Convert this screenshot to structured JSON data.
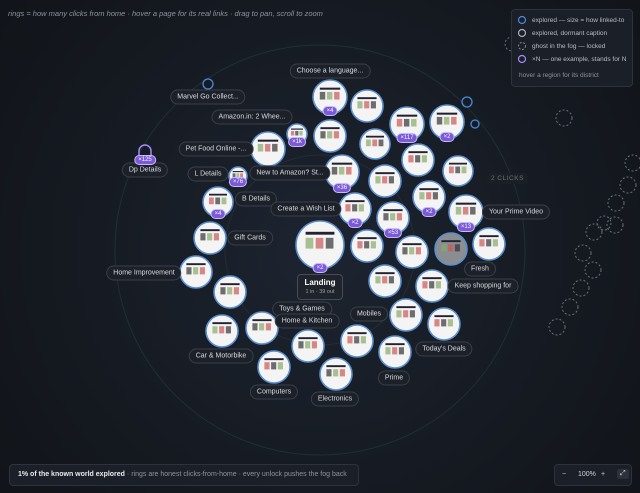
{
  "hint": "rings = how many clicks from home · hover a page for its real links · drag to pan, scroll to zoom",
  "legend": [
    "explored — size = how linked-to",
    "explored, dormant caption",
    "ghost in the fog — locked",
    "×N — one example, stands for N",
    "hover a region for its district"
  ],
  "ring_label": "2 CLICKS",
  "landing": {
    "title": "Landing",
    "stats": "1 in · 39 out",
    "badge": "×2"
  },
  "labels": [
    "Choose a language...",
    "Marvel Go Collect...",
    "Amazon.in: 2 Whee...",
    "Pet Food Online -...",
    "Dp Details",
    "L Details",
    "New to Amazon? St...",
    "B Details",
    "Create a Wish List",
    "Your Prime Video",
    "Gift Cards",
    "Home Improvement",
    "Fresh",
    "Keep shopping for",
    "Toys & Games",
    "Home & Kitchen",
    "Mobiles",
    "Car & Motorbike",
    "Today's Deals",
    "Prime",
    "Computers",
    "Electronics"
  ],
  "badges": [
    "×4",
    "×117",
    "×2",
    "×1k",
    "×125",
    "×76",
    "×36",
    "×4",
    "×2",
    "×53",
    "×2",
    "×13"
  ],
  "footer": {
    "stat": "1% of the known world explored",
    "note": "· rings are honest clicks-from-home · every unlock pushes the fog back"
  },
  "zoom": {
    "out": "−",
    "level": "100%",
    "in": "+",
    "fit": "⤢"
  }
}
